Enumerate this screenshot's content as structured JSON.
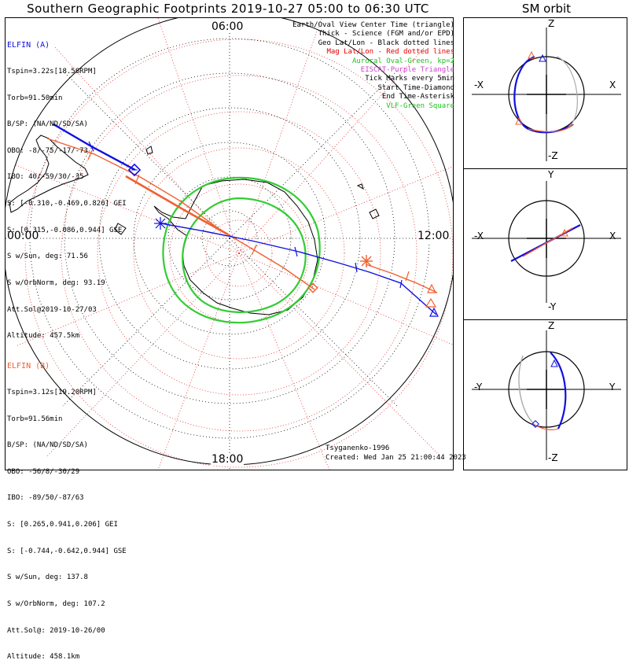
{
  "header": {
    "title": "Southern Geographic Footprints 2019-10-27 05:00 to 06:30 UTC",
    "orbit_panel_title": "SM orbit"
  },
  "map": {
    "local_time_labels": {
      "top": "06:00",
      "left": "00:00",
      "right": "12:00",
      "bottom": "18:00"
    }
  },
  "elfin_a": {
    "name": "ELFIN (A)",
    "color": "#1010e0",
    "lines": [
      "Tspin=3.22s[18.58RPM]",
      "Torb=91.50min",
      "B/SP: (NA/ND/SD/SA)",
      "OBO: -8/-75/-17/-73",
      "IBO: 40/-59/30/-35",
      "S: [-0.310,-0.469,0.826] GEI",
      "S: [0.315,-0.086,0.944] GSE",
      "S w/Sun, deg: 71.56",
      "S w/OrbNorm, deg: 93.19",
      "Att.Sol@2019-10-27/03",
      "Altitude: 457.5km"
    ]
  },
  "elfin_b": {
    "name": "ELFIN (B)",
    "color": "#f06030",
    "lines": [
      "Tspin=3.12s[19.20RPM]",
      "Torb=91.56min",
      "B/SP: (NA/ND/SD/SA)",
      "OBO: -56/8/-30/29",
      "IBO: -89/50/-87/63",
      "S: [0.265,0.941,0.206] GEI",
      "S: [-0.744,-0.642,0.944] GSE",
      "S w/Sun, deg: 137.8",
      "S w/OrbNorm, deg: 107.2",
      "Att.Sol@: 2019-10-26/00",
      "Altitude: 458.1km"
    ]
  },
  "legend": [
    {
      "text": "Earth/Oval View Center Time (triangle)",
      "color": "#000000"
    },
    {
      "text": "Thick - Science (FGM and/or EPD)",
      "color": "#000000"
    },
    {
      "text": "Geo Lat/Lon - Black dotted lines",
      "color": "#000000"
    },
    {
      "text": "Mag Lat/Lon - Red dotted lines",
      "color": "#e00000"
    },
    {
      "text": "Auroral Oval-Green, kp=2",
      "color": "#20c020"
    },
    {
      "text": "EISCAT-Purple Triangle",
      "color": "#d040d0"
    },
    {
      "text": "Tick Marks every 5min",
      "color": "#000000"
    },
    {
      "text": "Start Time-Diamond",
      "color": "#000000"
    },
    {
      "text": "End Time-Asterisk",
      "color": "#000000"
    },
    {
      "text": "VLF-Green Square",
      "color": "#20c020"
    }
  ],
  "footer": {
    "model": "Tsyganenko-1996",
    "created": "Created: Wed Jan 25 21:00:44 2023"
  },
  "orbit_panels": [
    {
      "top_axis": "Z",
      "bottom_axis": "-Z",
      "left_axis": "-X",
      "right_axis": "X"
    },
    {
      "top_axis": "Y",
      "bottom_axis": "-Y",
      "left_axis": "-X",
      "right_axis": "X"
    },
    {
      "top_axis": "Z",
      "bottom_axis": "-Z",
      "left_axis": "-Y",
      "right_axis": "Y"
    }
  ]
}
